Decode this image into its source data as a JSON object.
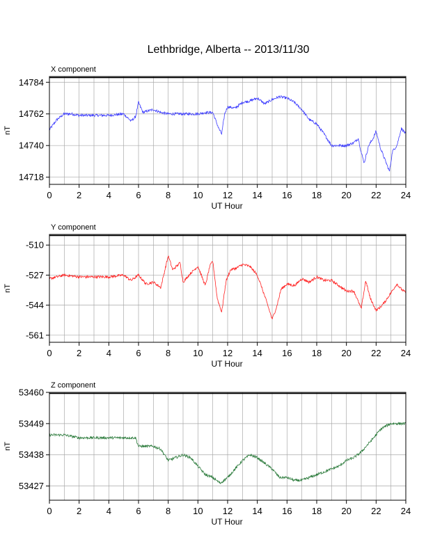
{
  "title": "Lethbridge, Alberta -- 2013/11/30",
  "chart_data": [
    {
      "type": "line",
      "panel_label": "X component",
      "xlabel": "UT Hour",
      "ylabel": "nT",
      "xlim": [
        0,
        24
      ],
      "ylim": [
        14713,
        14788
      ],
      "xticks": [
        0,
        2,
        4,
        6,
        8,
        10,
        12,
        14,
        16,
        18,
        20,
        22,
        24
      ],
      "yticks": [
        14718,
        14740,
        14762,
        14784
      ],
      "grid": true,
      "series": [
        {
          "color": "#3a3aff",
          "x": [
            0,
            0.5,
            1,
            1.5,
            2,
            3,
            4,
            5,
            5.5,
            5.8,
            6,
            6.3,
            6.6,
            7,
            7.5,
            8,
            9,
            10,
            10.5,
            11,
            11.4,
            11.6,
            11.8,
            12,
            12.5,
            13,
            13.5,
            14,
            14.5,
            15,
            15.5,
            16,
            16.5,
            17,
            17.5,
            18,
            18.5,
            19,
            19.5,
            20,
            20.5,
            20.8,
            21,
            21.2,
            21.5,
            21.8,
            22,
            22.3,
            22.6,
            22.9,
            23.1,
            23.4,
            23.7,
            24
          ],
          "y": [
            14751,
            14758,
            14762,
            14762,
            14761,
            14761,
            14761,
            14762,
            14757,
            14760,
            14770,
            14763,
            14764,
            14765,
            14763,
            14762,
            14762,
            14762,
            14763,
            14763,
            14752,
            14748,
            14762,
            14767,
            14766,
            14770,
            14771,
            14773,
            14769,
            14772,
            14774,
            14773,
            14770,
            14765,
            14758,
            14755,
            14748,
            14740,
            14740,
            14740,
            14742,
            14745,
            14735,
            14728,
            14740,
            14745,
            14750,
            14738,
            14730,
            14722,
            14736,
            14740,
            14752,
            14748
          ]
        }
      ]
    },
    {
      "type": "line",
      "panel_label": "Y component",
      "xlabel": "UT Hour",
      "ylabel": "nT",
      "xlim": [
        0,
        24
      ],
      "ylim": [
        -565,
        -504
      ],
      "xticks": [
        0,
        2,
        4,
        6,
        8,
        10,
        12,
        14,
        16,
        18,
        20,
        22,
        24
      ],
      "yticks": [
        -510,
        -527,
        -544,
        -561
      ],
      "grid": true,
      "series": [
        {
          "color": "#ff2020",
          "x": [
            0,
            1,
            2,
            3,
            4,
            5,
            5.5,
            6,
            6.5,
            7,
            7.5,
            8,
            8.3,
            8.8,
            9,
            9.5,
            10,
            10.5,
            10.8,
            11,
            11.3,
            11.6,
            11.9,
            12.2,
            12.6,
            13,
            13.5,
            14,
            14.3,
            14.7,
            15,
            15.3,
            15.6,
            16,
            16.5,
            17,
            17.5,
            18,
            18.5,
            19,
            19.5,
            20,
            20.5,
            21,
            21.3,
            21.6,
            22,
            22.3,
            22.6,
            23,
            23.4,
            23.7,
            24
          ],
          "y": [
            -529,
            -527,
            -528,
            -528,
            -528,
            -527,
            -530,
            -527,
            -532,
            -531,
            -534,
            -516,
            -524,
            -520,
            -531,
            -526,
            -522,
            -533,
            -522,
            -519,
            -540,
            -548,
            -530,
            -524,
            -523,
            -521,
            -522,
            -527,
            -534,
            -544,
            -552,
            -545,
            -535,
            -532,
            -533,
            -529,
            -531,
            -528,
            -530,
            -530,
            -533,
            -536,
            -536,
            -546,
            -530,
            -540,
            -547,
            -545,
            -542,
            -537,
            -532,
            -535,
            -537
          ]
        }
      ]
    },
    {
      "type": "line",
      "panel_label": "Z component",
      "xlabel": "UT Hour",
      "ylabel": "nT",
      "xlim": [
        0,
        24
      ],
      "ylim": [
        53422,
        53460
      ],
      "xticks": [
        0,
        2,
        4,
        6,
        8,
        10,
        12,
        14,
        16,
        18,
        20,
        22,
        24
      ],
      "yticks": [
        53427,
        53438,
        53449,
        53460
      ],
      "grid": true,
      "series": [
        {
          "color": "#2a7a3a",
          "x": [
            0,
            1,
            2,
            3,
            4,
            5,
            5.8,
            6,
            6.5,
            7,
            7.5,
            8,
            8.5,
            9,
            9.5,
            10,
            10.5,
            11,
            11.5,
            12,
            12.5,
            13,
            13.5,
            14,
            14.5,
            15,
            15.5,
            16,
            16.5,
            17,
            17.5,
            18,
            18.5,
            19,
            19.5,
            20,
            20.5,
            21,
            21.5,
            22,
            22.3,
            22.6,
            23,
            23.5,
            24
          ],
          "y": [
            53445,
            53445,
            53444,
            53444,
            53444,
            53444,
            53444,
            53441,
            53441,
            53441,
            53440,
            53436,
            53437,
            53438,
            53437,
            53434,
            53431,
            53430,
            53428,
            53430,
            53433,
            53436,
            53438,
            53437,
            53435,
            53433,
            53430,
            53430,
            53429,
            53429,
            53430,
            53431,
            53432,
            53433,
            53434,
            53436,
            53437,
            53439,
            53442,
            53445,
            53447,
            53448,
            53449,
            53449,
            53449
          ]
        }
      ]
    }
  ]
}
